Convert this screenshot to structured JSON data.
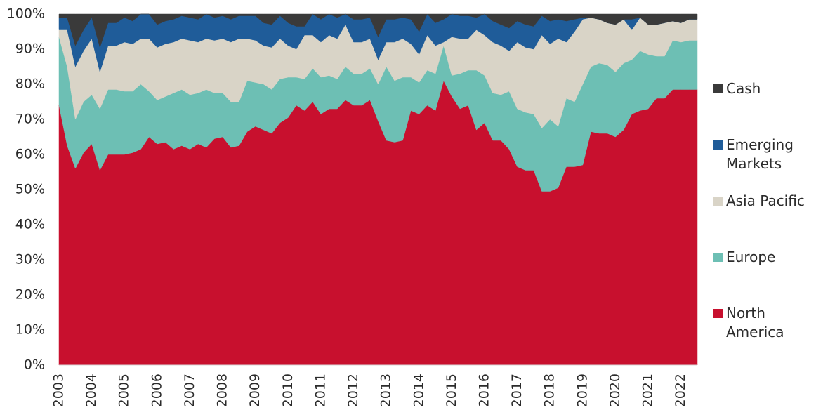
{
  "chart_data": {
    "type": "stacked-area",
    "categories": [
      "2003",
      null,
      null,
      null,
      "2004",
      null,
      null,
      null,
      "2005",
      null,
      null,
      null,
      "2006",
      null,
      null,
      null,
      "2007",
      null,
      null,
      null,
      "2008",
      null,
      null,
      null,
      "2009",
      null,
      null,
      null,
      "2010",
      null,
      null,
      null,
      "2011",
      null,
      null,
      null,
      "2012",
      null,
      null,
      null,
      "2013",
      null,
      null,
      null,
      "2014",
      null,
      null,
      null,
      "2015",
      null,
      null,
      null,
      "2016",
      null,
      null,
      null,
      "2017",
      null,
      null,
      null,
      "2018",
      null,
      null,
      null,
      "2019",
      null,
      null,
      null,
      "2020",
      null,
      null,
      null,
      "2021",
      null,
      null,
      null,
      "2022",
      null,
      null
    ],
    "series": [
      {
        "name": "North America",
        "color": "#c8102e",
        "values": [
          74,
          62.5,
          56,
          60.5,
          63,
          55.5,
          60,
          60,
          60,
          60.5,
          61.5,
          65,
          63,
          63.5,
          61.5,
          62.5,
          61.5,
          63,
          62,
          64.5,
          65,
          62,
          62.5,
          66.5,
          68,
          67,
          66,
          69,
          70.5,
          74,
          72.5,
          75,
          71.5,
          73,
          73,
          75.5,
          74,
          74,
          75.5,
          69.5,
          64,
          63.5,
          64,
          72.5,
          71.5,
          74,
          72.5,
          81,
          76.5,
          73,
          74,
          67,
          69,
          64,
          64,
          61.5,
          56.5,
          55.5,
          55.5,
          49.5,
          49.5,
          50.5,
          56.5,
          56.5,
          57,
          66.5,
          66,
          66,
          65,
          67,
          71.5,
          72.5,
          73,
          76,
          76,
          78.5,
          78.5,
          78.5,
          78.5
        ]
      },
      {
        "name": "Europe",
        "color": "#6dbfb4",
        "values": [
          19.5,
          22.5,
          14,
          14.5,
          14,
          17.5,
          18.5,
          18.5,
          18,
          17.5,
          18.5,
          13,
          12.5,
          13,
          16,
          16,
          15.5,
          14.5,
          16.5,
          13,
          12.5,
          13,
          12.5,
          14.5,
          12.5,
          13,
          12.5,
          12.5,
          11.5,
          8,
          9,
          9.5,
          10.5,
          9.5,
          8.5,
          9.5,
          9,
          9,
          9,
          10.5,
          21,
          17.5,
          18,
          9.5,
          9,
          10,
          10.5,
          10,
          6,
          10,
          10,
          17,
          13.5,
          13.5,
          13,
          16.5,
          16.5,
          16.5,
          16,
          18,
          20.5,
          17.5,
          19.5,
          18.5,
          23,
          18.5,
          20,
          19.5,
          18.5,
          19,
          15.5,
          17,
          15.5,
          12,
          12,
          14,
          13.5,
          14,
          14
        ]
      },
      {
        "name": "Asia Pacific",
        "color": "#d9d4c7",
        "values": [
          2,
          10.5,
          15,
          14.5,
          16,
          10.5,
          12.5,
          12.5,
          14,
          13.5,
          13,
          15,
          15,
          15,
          14.5,
          14.5,
          15.5,
          14.5,
          14.5,
          15,
          15.5,
          17,
          18,
          12,
          12,
          11,
          12,
          11.5,
          9,
          8,
          12.5,
          9.5,
          10,
          11.5,
          11.5,
          12,
          9,
          9,
          8.5,
          7,
          7,
          11,
          11,
          9.5,
          8,
          10,
          8,
          1,
          11,
          10,
          9,
          11.5,
          11.5,
          14.5,
          14,
          11.5,
          19,
          18.5,
          18.5,
          26.5,
          21.5,
          25,
          16,
          20,
          18.5,
          14,
          12.5,
          12,
          13.5,
          12.5,
          8.5,
          9.5,
          8.5,
          9,
          9.5,
          5.5,
          5.5,
          6,
          6
        ]
      },
      {
        "name": "Emerging Markets",
        "color": "#1f5c99",
        "values": [
          3.5,
          3.5,
          6,
          6,
          6,
          7,
          6.5,
          6.5,
          7,
          6.5,
          7,
          7,
          6.5,
          6.5,
          6.5,
          6.5,
          6.5,
          6.5,
          7,
          6.5,
          6.5,
          6.5,
          6.5,
          6.5,
          7,
          6.5,
          6.5,
          6.5,
          6.5,
          6.5,
          2.5,
          6,
          6.5,
          6,
          6,
          3,
          6.5,
          6.5,
          6,
          6.5,
          6.5,
          6.5,
          6,
          7,
          6.5,
          6,
          6.5,
          6.5,
          6.5,
          6.5,
          6.5,
          3.5,
          6,
          6,
          6,
          6.5,
          6,
          6.5,
          6.5,
          5.5,
          6.5,
          5.5,
          6,
          3.5,
          0.5,
          0,
          0,
          0,
          0,
          0,
          3,
          0,
          0,
          0,
          0,
          0,
          0,
          0,
          0
        ]
      },
      {
        "name": "Cash",
        "color": "#3a3a3a",
        "values": [
          1,
          1,
          9,
          4.5,
          1,
          9.5,
          2.5,
          2.5,
          1,
          2,
          0,
          0,
          3,
          2,
          1.5,
          0.5,
          1,
          1.5,
          0,
          1,
          0.5,
          1.5,
          0.5,
          0.5,
          0.5,
          2.5,
          3,
          0.5,
          2.5,
          3.5,
          3.5,
          0,
          1.5,
          0,
          1,
          0,
          1.5,
          1.5,
          1,
          6.5,
          1.5,
          1.5,
          1,
          1.5,
          5,
          0,
          2.5,
          1.5,
          0,
          0.5,
          0.5,
          1,
          0,
          2,
          3,
          4,
          2,
          3,
          3.5,
          0.5,
          2,
          1.5,
          2,
          1.5,
          1,
          1,
          1.5,
          2.5,
          3,
          1.5,
          1.5,
          1,
          3,
          3,
          2.5,
          2,
          2.5,
          1.5,
          1.5
        ]
      }
    ],
    "ylim": [
      0,
      100
    ],
    "yticks": [
      {
        "value": 0,
        "label": "0%"
      },
      {
        "value": 10,
        "label": "10%"
      },
      {
        "value": 20,
        "label": "20%"
      },
      {
        "value": 30,
        "label": "30%"
      },
      {
        "value": 40,
        "label": "40%"
      },
      {
        "value": 50,
        "label": "50%"
      },
      {
        "value": 60,
        "label": "60%"
      },
      {
        "value": 70,
        "label": "70%"
      },
      {
        "value": 80,
        "label": "80%"
      },
      {
        "value": 90,
        "label": "90%"
      },
      {
        "value": 100,
        "label": "100%"
      }
    ],
    "grid": false,
    "legend": "right"
  }
}
